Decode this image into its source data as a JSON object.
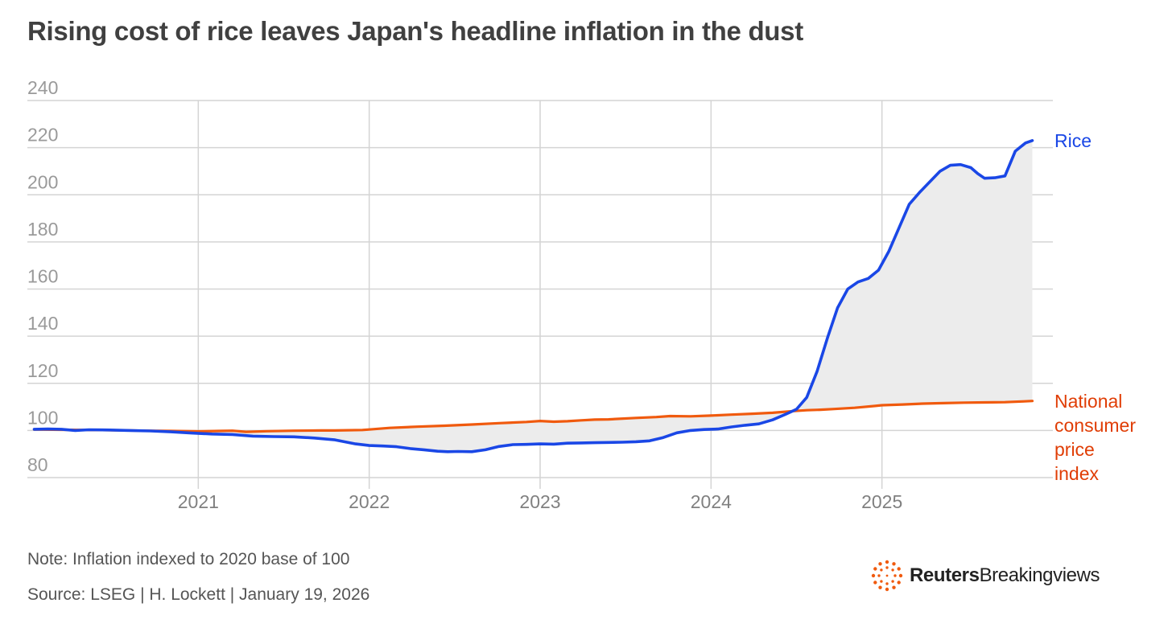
{
  "note": "Note: Inflation indexed to 2020 base of 100",
  "source": "Source: LSEG | H. Lockett | January 19, 2026",
  "brand": {
    "name_bold": "Reuters",
    "name_rest": "Breakingviews",
    "icon": "reuters-dots-logo-icon"
  },
  "colors": {
    "rice": "#1a47e6",
    "cpi": "#f05a0e",
    "cpi_label": "#e03d05",
    "fill": "#ececec",
    "grid": "#d4d4d4"
  },
  "chart_data": {
    "type": "line",
    "title": "Rising cost of rice leaves Japan's headline inflation in the dust",
    "xlabel": "",
    "ylabel": "",
    "ylim": [
      80,
      240
    ],
    "xlim": [
      2020.0,
      2026.0
    ],
    "y_ticks": [
      "240",
      "220",
      "200",
      "180",
      "160",
      "140",
      "120",
      "100",
      "80"
    ],
    "x_ticks": [
      "2021",
      "2022",
      "2023",
      "2024",
      "2025"
    ],
    "grid": true,
    "shaded_area_between_series": true,
    "series": [
      {
        "name": "Rice",
        "label": "Rice",
        "color": "#1a47e6",
        "points": [
          [
            2020.04,
            100.5
          ],
          [
            2020.12,
            100.6
          ],
          [
            2020.2,
            100.5
          ],
          [
            2020.28,
            100.0
          ],
          [
            2020.36,
            100.3
          ],
          [
            2020.48,
            100.2
          ],
          [
            2020.6,
            100.0
          ],
          [
            2020.72,
            99.8
          ],
          [
            2020.84,
            99.4
          ],
          [
            2020.96,
            98.9
          ],
          [
            2021.08,
            98.5
          ],
          [
            2021.2,
            98.3
          ],
          [
            2021.32,
            97.6
          ],
          [
            2021.44,
            97.4
          ],
          [
            2021.56,
            97.3
          ],
          [
            2021.68,
            96.8
          ],
          [
            2021.8,
            96.0
          ],
          [
            2021.92,
            94.3
          ],
          [
            2022.0,
            93.6
          ],
          [
            2022.08,
            93.4
          ],
          [
            2022.16,
            93.1
          ],
          [
            2022.24,
            92.3
          ],
          [
            2022.32,
            91.8
          ],
          [
            2022.4,
            91.2
          ],
          [
            2022.46,
            91.0
          ],
          [
            2022.52,
            91.1
          ],
          [
            2022.6,
            91.0
          ],
          [
            2022.68,
            91.8
          ],
          [
            2022.76,
            93.2
          ],
          [
            2022.84,
            94.0
          ],
          [
            2022.92,
            94.1
          ],
          [
            2023.0,
            94.3
          ],
          [
            2023.08,
            94.2
          ],
          [
            2023.16,
            94.6
          ],
          [
            2023.24,
            94.7
          ],
          [
            2023.32,
            94.8
          ],
          [
            2023.4,
            94.9
          ],
          [
            2023.48,
            95.0
          ],
          [
            2023.56,
            95.2
          ],
          [
            2023.64,
            95.6
          ],
          [
            2023.72,
            97.0
          ],
          [
            2023.8,
            99.0
          ],
          [
            2023.88,
            100.0
          ],
          [
            2023.96,
            100.4
          ],
          [
            2024.04,
            100.6
          ],
          [
            2024.12,
            101.5
          ],
          [
            2024.2,
            102.2
          ],
          [
            2024.28,
            102.8
          ],
          [
            2024.36,
            104.5
          ],
          [
            2024.44,
            107.0
          ],
          [
            2024.5,
            109.0
          ],
          [
            2024.56,
            114.0
          ],
          [
            2024.62,
            125.0
          ],
          [
            2024.68,
            139.0
          ],
          [
            2024.74,
            152.0
          ],
          [
            2024.8,
            160.0
          ],
          [
            2024.86,
            163.0
          ],
          [
            2024.92,
            164.5
          ],
          [
            2024.98,
            168.0
          ],
          [
            2025.04,
            176.0
          ],
          [
            2025.1,
            186.0
          ],
          [
            2025.16,
            196.0
          ],
          [
            2025.22,
            201.0
          ],
          [
            2025.28,
            205.5
          ],
          [
            2025.34,
            210.0
          ],
          [
            2025.4,
            212.5
          ],
          [
            2025.46,
            212.8
          ],
          [
            2025.52,
            211.5
          ],
          [
            2025.56,
            209.0
          ],
          [
            2025.6,
            207.0
          ],
          [
            2025.66,
            207.2
          ],
          [
            2025.72,
            208.0
          ],
          [
            2025.78,
            218.5
          ],
          [
            2025.84,
            222.0
          ],
          [
            2025.88,
            223.0
          ]
        ]
      },
      {
        "name": "National consumer price index",
        "label": [
          "National",
          "consumer",
          "price",
          "index"
        ],
        "color": "#f05a0e",
        "points": [
          [
            2020.04,
            100.4
          ],
          [
            2020.2,
            100.3
          ],
          [
            2020.36,
            100.2
          ],
          [
            2020.52,
            100.1
          ],
          [
            2020.68,
            99.9
          ],
          [
            2020.84,
            99.8
          ],
          [
            2021.0,
            99.6
          ],
          [
            2021.12,
            99.8
          ],
          [
            2021.2,
            99.9
          ],
          [
            2021.28,
            99.4
          ],
          [
            2021.4,
            99.7
          ],
          [
            2021.56,
            99.9
          ],
          [
            2021.72,
            100.0
          ],
          [
            2021.8,
            100.0
          ],
          [
            2021.96,
            100.2
          ],
          [
            2022.0,
            100.4
          ],
          [
            2022.12,
            101.1
          ],
          [
            2022.28,
            101.6
          ],
          [
            2022.44,
            102.0
          ],
          [
            2022.6,
            102.5
          ],
          [
            2022.76,
            103.1
          ],
          [
            2022.92,
            103.6
          ],
          [
            2023.0,
            104.0
          ],
          [
            2023.08,
            103.7
          ],
          [
            2023.16,
            103.9
          ],
          [
            2023.24,
            104.3
          ],
          [
            2023.32,
            104.6
          ],
          [
            2023.4,
            104.7
          ],
          [
            2023.56,
            105.3
          ],
          [
            2023.68,
            105.7
          ],
          [
            2023.76,
            106.1
          ],
          [
            2023.88,
            106.0
          ],
          [
            2024.0,
            106.3
          ],
          [
            2024.12,
            106.7
          ],
          [
            2024.24,
            107.1
          ],
          [
            2024.36,
            107.5
          ],
          [
            2024.48,
            108.2
          ],
          [
            2024.56,
            108.6
          ],
          [
            2024.64,
            108.8
          ],
          [
            2024.72,
            109.1
          ],
          [
            2024.84,
            109.6
          ],
          [
            2024.96,
            110.4
          ],
          [
            2025.0,
            110.7
          ],
          [
            2025.12,
            111.0
          ],
          [
            2025.24,
            111.4
          ],
          [
            2025.36,
            111.6
          ],
          [
            2025.48,
            111.8
          ],
          [
            2025.6,
            111.9
          ],
          [
            2025.72,
            112.0
          ],
          [
            2025.82,
            112.3
          ],
          [
            2025.88,
            112.5
          ]
        ]
      }
    ]
  }
}
